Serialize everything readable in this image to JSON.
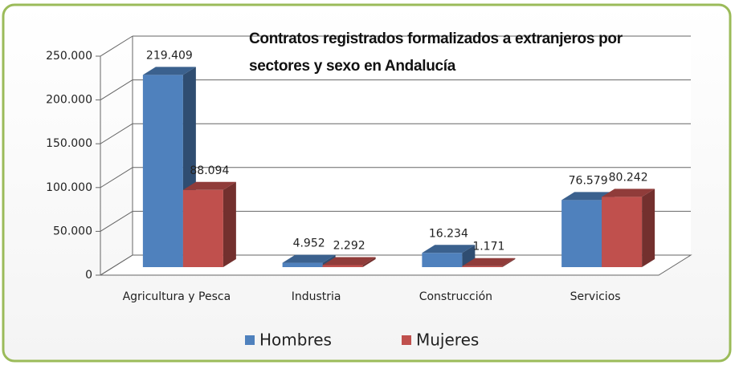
{
  "chart_data": {
    "type": "bar3d",
    "title": "Contratos registrados  formalizados a extranjeros por sectores y sexo en Andalucía",
    "categories": [
      "Agricultura y Pesca",
      "Industria",
      "Construcción",
      "Servicios"
    ],
    "series": [
      {
        "name": "Hombres",
        "color": "#4f81bd",
        "values": [
          219409,
          4952,
          16234,
          76579
        ],
        "value_labels": [
          "219.409",
          "4.952",
          "16.234",
          "76.579"
        ]
      },
      {
        "name": "Mujeres",
        "color": "#c0504d",
        "values": [
          88094,
          2292,
          1171,
          80242
        ],
        "value_labels": [
          "88.094",
          "2.292",
          "1.171",
          "80.242"
        ]
      }
    ],
    "ylim": [
      0,
      250000
    ],
    "yticks": [
      0,
      {
        "value": 50000,
        "label": "50.000"
      },
      {
        "value": 100000,
        "label": "100.000"
      },
      {
        "value": 150000,
        "label": "150.000"
      },
      {
        "value": 200000,
        "label": "200.000"
      },
      {
        "value": 250000,
        "label": "250.000"
      }
    ],
    "grid": true,
    "legend": "bottom"
  }
}
